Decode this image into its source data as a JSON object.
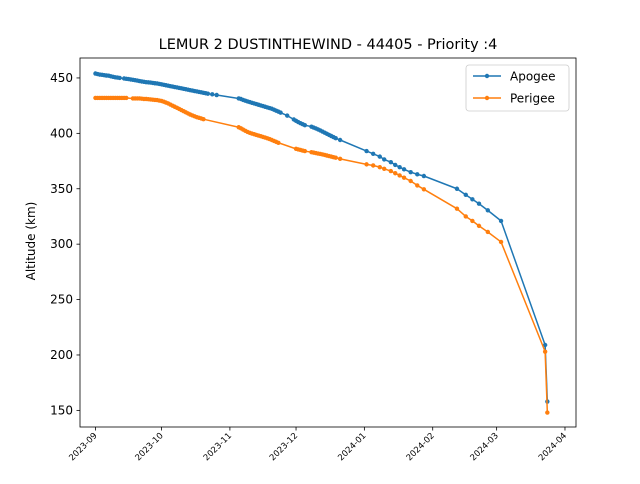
{
  "chart_data": {
    "type": "line",
    "title": "LEMUR 2 DUSTINTHEWIND - 44405 - Priority :4",
    "xlabel": "",
    "ylabel": "Altitude (km)",
    "xlim": [
      "2023-08-25",
      "2024-04-06"
    ],
    "ylim": [
      135,
      468
    ],
    "x_ticks": [
      "2023-09-01",
      "2023-10-01",
      "2023-11-01",
      "2023-12-01",
      "2024-01-01",
      "2024-02-01",
      "2024-03-01",
      "2024-04-01"
    ],
    "x_tick_labels": [
      "2023-09",
      "2023-10",
      "2023-11",
      "2023-12",
      "2024-01",
      "2024-02",
      "2024-03",
      "2024-04"
    ],
    "y_ticks": [
      150,
      200,
      250,
      300,
      350,
      400,
      450
    ],
    "grid": false,
    "legend_position": "top-right",
    "colors": {
      "apogee": "#1f77b4",
      "perigee": "#ff7f0e"
    },
    "series": [
      {
        "name": "Apogee",
        "points": [
          [
            "2023-09-01",
            454
          ],
          [
            "2023-09-02",
            453.5
          ],
          [
            "2023-09-03",
            453
          ],
          [
            "2023-09-04",
            452.8
          ],
          [
            "2023-09-05",
            452.5
          ],
          [
            "2023-09-06",
            452.2
          ],
          [
            "2023-09-07",
            452
          ],
          [
            "2023-09-08",
            451.5
          ],
          [
            "2023-09-09",
            451
          ],
          [
            "2023-09-10",
            450.6
          ],
          [
            "2023-09-11",
            450.3
          ],
          [
            "2023-09-12",
            450
          ],
          [
            "2023-09-14",
            449.5
          ],
          [
            "2023-09-15",
            449.2
          ],
          [
            "2023-09-16",
            449
          ],
          [
            "2023-09-17",
            448.6
          ],
          [
            "2023-09-18",
            448.3
          ],
          [
            "2023-09-19",
            448
          ],
          [
            "2023-09-20",
            447.6
          ],
          [
            "2023-09-21",
            447.2
          ],
          [
            "2023-09-22",
            446.8
          ],
          [
            "2023-09-23",
            446.5
          ],
          [
            "2023-09-24",
            446.2
          ],
          [
            "2023-09-25",
            446
          ],
          [
            "2023-09-26",
            445.8
          ],
          [
            "2023-09-27",
            445.5
          ],
          [
            "2023-09-28",
            445.2
          ],
          [
            "2023-09-29",
            445
          ],
          [
            "2023-09-30",
            444.6
          ],
          [
            "2023-10-01",
            444.2
          ],
          [
            "2023-10-02",
            443.8
          ],
          [
            "2023-10-03",
            443.4
          ],
          [
            "2023-10-04",
            443
          ],
          [
            "2023-10-05",
            442.6
          ],
          [
            "2023-10-06",
            442.2
          ],
          [
            "2023-10-07",
            441.8
          ],
          [
            "2023-10-08",
            441.4
          ],
          [
            "2023-10-09",
            441
          ],
          [
            "2023-10-10",
            440.6
          ],
          [
            "2023-10-11",
            440.2
          ],
          [
            "2023-10-12",
            439.8
          ],
          [
            "2023-10-13",
            439.4
          ],
          [
            "2023-10-14",
            439
          ],
          [
            "2023-10-15",
            438.6
          ],
          [
            "2023-10-16",
            438.2
          ],
          [
            "2023-10-17",
            437.8
          ],
          [
            "2023-10-18",
            437.4
          ],
          [
            "2023-10-19",
            437
          ],
          [
            "2023-10-20",
            436.6
          ],
          [
            "2023-10-21",
            436.2
          ],
          [
            "2023-10-22",
            435.8
          ],
          [
            "2023-10-24",
            435.2
          ],
          [
            "2023-10-26",
            434.6
          ],
          [
            "2023-11-05",
            431.5
          ],
          [
            "2023-11-06",
            431
          ],
          [
            "2023-11-07",
            430.2
          ],
          [
            "2023-11-08",
            429.5
          ],
          [
            "2023-11-09",
            428.8
          ],
          [
            "2023-11-10",
            428.2
          ],
          [
            "2023-11-11",
            427.6
          ],
          [
            "2023-11-12",
            427
          ],
          [
            "2023-11-13",
            426.4
          ],
          [
            "2023-11-14",
            425.8
          ],
          [
            "2023-11-15",
            425.2
          ],
          [
            "2023-11-16",
            424.6
          ],
          [
            "2023-11-17",
            424
          ],
          [
            "2023-11-18",
            423.4
          ],
          [
            "2023-11-19",
            422.8
          ],
          [
            "2023-11-20",
            422.2
          ],
          [
            "2023-11-21",
            421.4
          ],
          [
            "2023-11-22",
            420.5
          ],
          [
            "2023-11-23",
            419.6
          ],
          [
            "2023-11-24",
            418.7
          ],
          [
            "2023-11-27",
            416
          ],
          [
            "2023-11-30",
            412.5
          ],
          [
            "2023-12-01",
            411.3
          ],
          [
            "2023-12-02",
            410.2
          ],
          [
            "2023-12-03",
            409.2
          ],
          [
            "2023-12-04",
            408.3
          ],
          [
            "2023-12-05",
            407.4
          ],
          [
            "2023-12-08",
            406
          ],
          [
            "2023-12-09",
            405.2
          ],
          [
            "2023-12-10",
            404.4
          ],
          [
            "2023-12-11",
            403.5
          ],
          [
            "2023-12-12",
            402.6
          ],
          [
            "2023-12-13",
            401.6
          ],
          [
            "2023-12-14",
            400.6
          ],
          [
            "2023-12-15",
            399.6
          ],
          [
            "2023-12-16",
            398.6
          ],
          [
            "2023-12-17",
            397.6
          ],
          [
            "2023-12-18",
            396.6
          ],
          [
            "2023-12-19",
            395.6
          ],
          [
            "2023-12-21",
            394
          ],
          [
            "2024-01-02",
            384
          ],
          [
            "2024-01-05",
            381.5
          ],
          [
            "2024-01-08",
            379
          ],
          [
            "2024-01-10",
            376.5
          ],
          [
            "2024-01-13",
            374
          ],
          [
            "2024-01-15",
            371.5
          ],
          [
            "2024-01-17",
            369.5
          ],
          [
            "2024-01-19",
            367.5
          ],
          [
            "2024-01-22",
            365
          ],
          [
            "2024-01-25",
            363
          ],
          [
            "2024-01-28",
            361.5
          ],
          [
            "2024-02-12",
            350
          ],
          [
            "2024-02-16",
            344.5
          ],
          [
            "2024-02-19",
            340.5
          ],
          [
            "2024-02-22",
            336.5
          ],
          [
            "2024-02-26",
            330.5
          ],
          [
            "2024-03-03",
            321
          ],
          [
            "2024-03-23",
            209
          ],
          [
            "2024-03-24",
            158
          ]
        ]
      },
      {
        "name": "Perigee",
        "points": [
          [
            "2023-09-01",
            432
          ],
          [
            "2023-09-02",
            432
          ],
          [
            "2023-09-03",
            432
          ],
          [
            "2023-09-04",
            432
          ],
          [
            "2023-09-05",
            432
          ],
          [
            "2023-09-06",
            432
          ],
          [
            "2023-09-07",
            432
          ],
          [
            "2023-09-08",
            432
          ],
          [
            "2023-09-09",
            432
          ],
          [
            "2023-09-10",
            432
          ],
          [
            "2023-09-11",
            432
          ],
          [
            "2023-09-12",
            432
          ],
          [
            "2023-09-13",
            432
          ],
          [
            "2023-09-14",
            432
          ],
          [
            "2023-09-15",
            432
          ],
          [
            "2023-09-18",
            431.5
          ],
          [
            "2023-09-19",
            431.5
          ],
          [
            "2023-09-20",
            431.5
          ],
          [
            "2023-09-21",
            431.5
          ],
          [
            "2023-09-22",
            431.3
          ],
          [
            "2023-09-23",
            431
          ],
          [
            "2023-09-24",
            431
          ],
          [
            "2023-09-25",
            430.8
          ],
          [
            "2023-09-26",
            430.6
          ],
          [
            "2023-09-27",
            430.4
          ],
          [
            "2023-09-28",
            430.2
          ],
          [
            "2023-09-29",
            430
          ],
          [
            "2023-09-30",
            429.6
          ],
          [
            "2023-10-01",
            429.2
          ],
          [
            "2023-10-02",
            428.6
          ],
          [
            "2023-10-03",
            427.8
          ],
          [
            "2023-10-04",
            427
          ],
          [
            "2023-10-05",
            426
          ],
          [
            "2023-10-06",
            425
          ],
          [
            "2023-10-07",
            424
          ],
          [
            "2023-10-08",
            423
          ],
          [
            "2023-10-09",
            422
          ],
          [
            "2023-10-10",
            421
          ],
          [
            "2023-10-11",
            420
          ],
          [
            "2023-10-12",
            419
          ],
          [
            "2023-10-13",
            418
          ],
          [
            "2023-10-14",
            417
          ],
          [
            "2023-10-15",
            416.2
          ],
          [
            "2023-10-16",
            415.4
          ],
          [
            "2023-10-17",
            414.6
          ],
          [
            "2023-10-18",
            414
          ],
          [
            "2023-10-19",
            413.4
          ],
          [
            "2023-10-20",
            412.8
          ],
          [
            "2023-11-05",
            405.5
          ],
          [
            "2023-11-06",
            404.5
          ],
          [
            "2023-11-07",
            403.4
          ],
          [
            "2023-11-08",
            402.3
          ],
          [
            "2023-11-09",
            401.3
          ],
          [
            "2023-11-10",
            400.5
          ],
          [
            "2023-11-11",
            399.8
          ],
          [
            "2023-11-12",
            399.2
          ],
          [
            "2023-11-13",
            398.6
          ],
          [
            "2023-11-14",
            398
          ],
          [
            "2023-11-15",
            397.4
          ],
          [
            "2023-11-16",
            396.8
          ],
          [
            "2023-11-17",
            396.2
          ],
          [
            "2023-11-18",
            395.5
          ],
          [
            "2023-11-19",
            394.8
          ],
          [
            "2023-11-20",
            394
          ],
          [
            "2023-11-21",
            393.2
          ],
          [
            "2023-11-22",
            392.3
          ],
          [
            "2023-11-23",
            391.5
          ],
          [
            "2023-12-01",
            386
          ],
          [
            "2023-12-02",
            385.5
          ],
          [
            "2023-12-03",
            385
          ],
          [
            "2023-12-04",
            384.5
          ],
          [
            "2023-12-05",
            384
          ],
          [
            "2023-12-08",
            383
          ],
          [
            "2023-12-09",
            382.6
          ],
          [
            "2023-12-10",
            382.2
          ],
          [
            "2023-12-11",
            381.8
          ],
          [
            "2023-12-12",
            381.4
          ],
          [
            "2023-12-13",
            381
          ],
          [
            "2023-12-14",
            380.5
          ],
          [
            "2023-12-15",
            380
          ],
          [
            "2023-12-16",
            379.5
          ],
          [
            "2023-12-17",
            379
          ],
          [
            "2023-12-18",
            378.5
          ],
          [
            "2023-12-19",
            378
          ],
          [
            "2023-12-21",
            377
          ],
          [
            "2024-01-02",
            372
          ],
          [
            "2024-01-05",
            371
          ],
          [
            "2024-01-08",
            369.5
          ],
          [
            "2024-01-10",
            368
          ],
          [
            "2024-01-13",
            366
          ],
          [
            "2024-01-15",
            364
          ],
          [
            "2024-01-17",
            362
          ],
          [
            "2024-01-19",
            360
          ],
          [
            "2024-01-22",
            357
          ],
          [
            "2024-01-25",
            353
          ],
          [
            "2024-01-28",
            349.5
          ],
          [
            "2024-02-12",
            332
          ],
          [
            "2024-02-16",
            325
          ],
          [
            "2024-02-19",
            321
          ],
          [
            "2024-02-22",
            316.5
          ],
          [
            "2024-02-26",
            311
          ],
          [
            "2024-03-03",
            302
          ],
          [
            "2024-03-23",
            203
          ],
          [
            "2024-03-24",
            148
          ]
        ]
      }
    ]
  }
}
